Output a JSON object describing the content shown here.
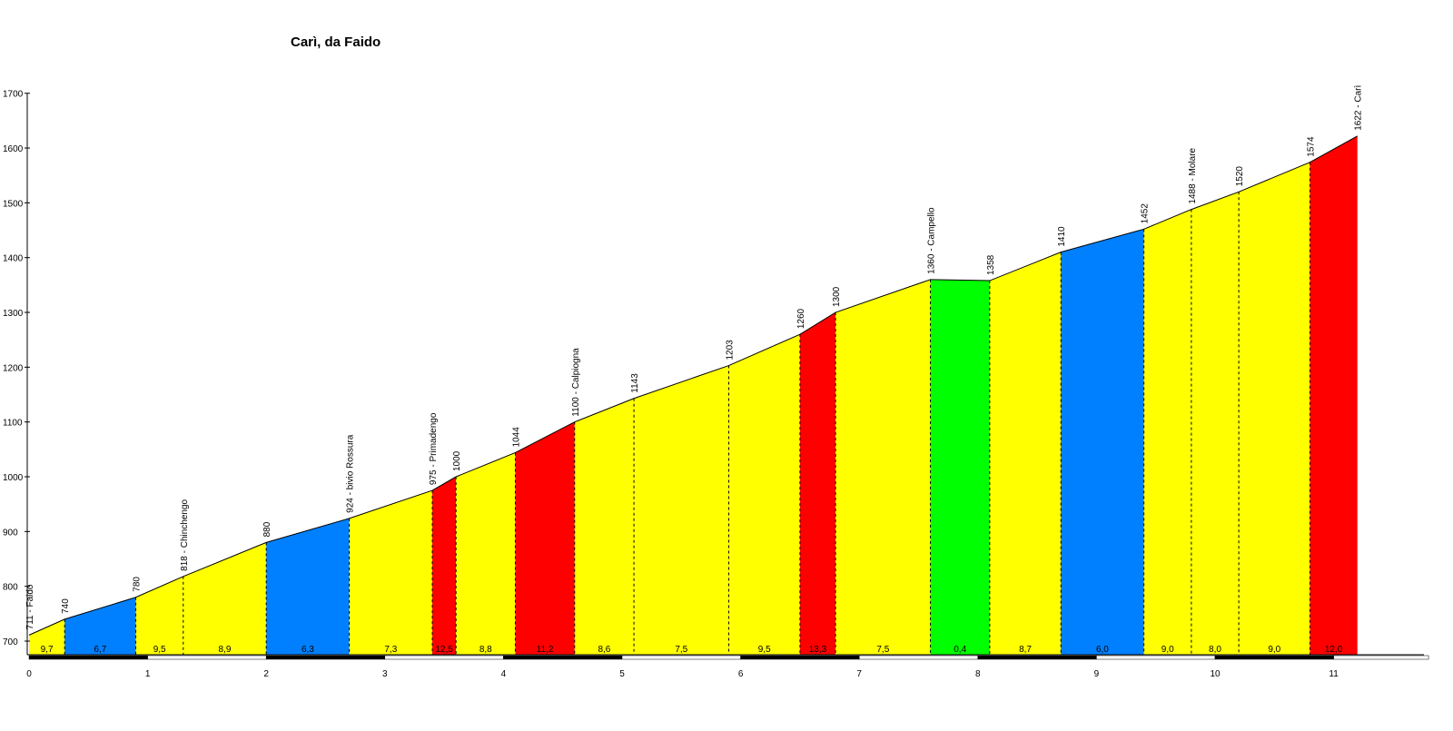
{
  "chart_data": {
    "type": "area",
    "title": "Carì, da Faido",
    "xlabel": "",
    "ylabel": "",
    "xlim": [
      0,
      11.8
    ],
    "ylim": [
      675,
      1700
    ],
    "y_ticks": [
      700,
      800,
      900,
      1000,
      1100,
      1200,
      1300,
      1400,
      1500,
      1600,
      1700
    ],
    "x_ticks": [
      0,
      1,
      2,
      3,
      4,
      5,
      6,
      7,
      8,
      9,
      10,
      11
    ],
    "grid": false,
    "points": [
      {
        "x": 0.0,
        "y": 711,
        "label": "711 - Faido"
      },
      {
        "x": 0.3,
        "y": 740,
        "label": "740"
      },
      {
        "x": 0.9,
        "y": 780,
        "label": "780"
      },
      {
        "x": 1.3,
        "y": 818,
        "label": "818 - Chinchengo"
      },
      {
        "x": 2.0,
        "y": 880,
        "label": "880"
      },
      {
        "x": 2.7,
        "y": 924,
        "label": "924 - bivio Rossura"
      },
      {
        "x": 3.4,
        "y": 975,
        "label": "975 - Primadengo"
      },
      {
        "x": 3.6,
        "y": 1000,
        "label": "1000"
      },
      {
        "x": 4.1,
        "y": 1044,
        "label": "1044"
      },
      {
        "x": 4.6,
        "y": 1100,
        "label": "1100 - Calpiogna"
      },
      {
        "x": 5.1,
        "y": 1143,
        "label": "1143"
      },
      {
        "x": 5.9,
        "y": 1203,
        "label": "1203"
      },
      {
        "x": 6.5,
        "y": 1260,
        "label": "1260"
      },
      {
        "x": 6.8,
        "y": 1300,
        "label": "1300"
      },
      {
        "x": 7.6,
        "y": 1360,
        "label": "1360 - Campello"
      },
      {
        "x": 8.1,
        "y": 1358,
        "label": "1358"
      },
      {
        "x": 8.7,
        "y": 1410,
        "label": "1410"
      },
      {
        "x": 9.4,
        "y": 1452,
        "label": "1452"
      },
      {
        "x": 9.8,
        "y": 1488,
        "label": "1488 - Molare"
      },
      {
        "x": 10.2,
        "y": 1520,
        "label": "1520"
      },
      {
        "x": 10.8,
        "y": 1574,
        "label": "1574"
      },
      {
        "x": 11.2,
        "y": 1622,
        "label": "1622 - Carì"
      }
    ],
    "segments": [
      {
        "grade": "9,7",
        "color": "#ffff00"
      },
      {
        "grade": "6,7",
        "color": "#0080ff"
      },
      {
        "grade": "9,5",
        "color": "#ffff00"
      },
      {
        "grade": "8,9",
        "color": "#ffff00"
      },
      {
        "grade": "6,3",
        "color": "#0080ff"
      },
      {
        "grade": "7,3",
        "color": "#ffff00"
      },
      {
        "grade": "12,5",
        "color": "#ff0000"
      },
      {
        "grade": "8,8",
        "color": "#ffff00"
      },
      {
        "grade": "11,2",
        "color": "#ff0000"
      },
      {
        "grade": "8,6",
        "color": "#ffff00"
      },
      {
        "grade": "7,5",
        "color": "#ffff00"
      },
      {
        "grade": "9,5",
        "color": "#ffff00"
      },
      {
        "grade": "13,3",
        "color": "#ff0000"
      },
      {
        "grade": "7,5",
        "color": "#ffff00"
      },
      {
        "grade": "0,4",
        "color": "#00ff00"
      },
      {
        "grade": "8,7",
        "color": "#ffff00"
      },
      {
        "grade": "6,0",
        "color": "#0080ff"
      },
      {
        "grade": "9,0",
        "color": "#ffff00"
      },
      {
        "grade": "8,0",
        "color": "#ffff00"
      },
      {
        "grade": "9,0",
        "color": "#ffff00"
      },
      {
        "grade": "12,0",
        "color": "#ff0000"
      }
    ]
  }
}
